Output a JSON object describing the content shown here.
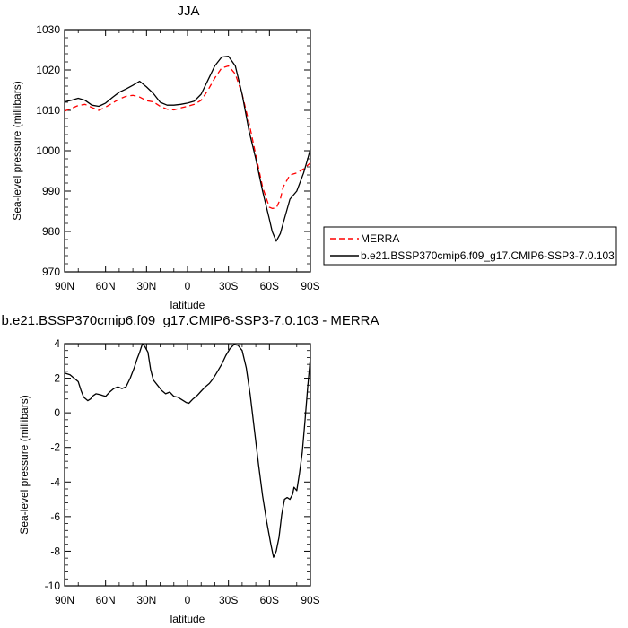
{
  "chart_data": [
    {
      "type": "line",
      "title": "JJA",
      "xlabel": "latitude",
      "ylabel": "Sea-level pressure (millibars)",
      "ylim": [
        970,
        1030
      ],
      "yticks": [
        970,
        980,
        990,
        1000,
        1010,
        1020,
        1030
      ],
      "xlim": [
        90,
        -90
      ],
      "xticks": [
        90,
        60,
        30,
        0,
        -30,
        -60,
        -90
      ],
      "xticklabels": [
        "90N",
        "60N",
        "30N",
        "0",
        "30S",
        "60S",
        "90S"
      ],
      "grid": false,
      "legend_position": "right",
      "series": [
        {
          "name": "MERRA",
          "color": "#ff0000",
          "dash": "dashed",
          "x": [
            90,
            85,
            80,
            75,
            70,
            65,
            60,
            55,
            50,
            45,
            40,
            35,
            30,
            25,
            20,
            15,
            10,
            5,
            0,
            -5,
            -10,
            -15,
            -20,
            -25,
            -30,
            -35,
            -40,
            -45,
            -50,
            -55,
            -60,
            -62,
            -65,
            -68,
            -70,
            -75,
            -80,
            -85,
            -90
          ],
          "y": [
            1009.8,
            1010.5,
            1011.2,
            1011.5,
            1010.7,
            1010,
            1010.8,
            1011.8,
            1012.8,
            1013.5,
            1013.7,
            1013.3,
            1012.4,
            1012.1,
            1011,
            1010.3,
            1010.1,
            1010.6,
            1011,
            1011.5,
            1012.5,
            1015,
            1018,
            1020.5,
            1021,
            1019,
            1014,
            1007,
            999,
            991,
            986,
            985.7,
            985.8,
            988,
            991,
            994,
            994.5,
            995.5,
            997
          ]
        },
        {
          "name": "b.e21.BSSP370cmip6.f09_g17.CMIP6-SSP3-7.0.103",
          "color": "#000000",
          "dash": "solid",
          "x": [
            90,
            85,
            80,
            75,
            70,
            65,
            60,
            55,
            50,
            45,
            40,
            35,
            30,
            25,
            20,
            15,
            10,
            5,
            0,
            -5,
            -10,
            -15,
            -20,
            -25,
            -30,
            -35,
            -40,
            -45,
            -50,
            -55,
            -60,
            -62,
            -65,
            -68,
            -70,
            -75,
            -80,
            -85,
            -88,
            -90
          ],
          "y": [
            1012.1,
            1012.5,
            1013,
            1012.5,
            1011.3,
            1011,
            1011.8,
            1013.2,
            1014.5,
            1015.3,
            1016.2,
            1017.2,
            1015.8,
            1014.2,
            1012,
            1011.3,
            1011.3,
            1011.5,
            1011.8,
            1012.3,
            1014,
            1017.5,
            1021,
            1023.2,
            1023.4,
            1021,
            1014,
            1005,
            998,
            990,
            983,
            980,
            977.6,
            979.5,
            982,
            988,
            990,
            994.5,
            998,
            1000.5
          ]
        }
      ]
    },
    {
      "type": "line",
      "title": "b.e21.BSSP370cmip6.f09_g17.CMIP6-SSP3-7.0.103 - MERRA",
      "xlabel": "latitude",
      "ylabel": "Sea-level pressure (millibars)",
      "ylim": [
        -10,
        4
      ],
      "yticks": [
        -10,
        -8,
        -6,
        -4,
        -2,
        0,
        2,
        4
      ],
      "xlim": [
        90,
        -90
      ],
      "xticks": [
        90,
        60,
        30,
        0,
        -30,
        -60,
        -90
      ],
      "xticklabels": [
        "90N",
        "60N",
        "30N",
        "0",
        "30S",
        "60S",
        "90S"
      ],
      "grid": false,
      "series": [
        {
          "color": "#000000",
          "dash": "solid",
          "x": [
            90,
            86,
            83,
            80,
            78,
            76,
            73,
            71,
            69,
            67,
            64,
            62,
            60,
            57,
            54,
            51,
            48,
            45,
            42,
            39,
            37,
            35,
            33,
            31,
            29,
            27,
            25,
            22,
            19,
            16,
            13,
            10,
            7,
            4,
            1,
            -1,
            -4,
            -7,
            -10,
            -13,
            -16,
            -19,
            -22,
            -25,
            -28,
            -31,
            -34,
            -37,
            -40,
            -43,
            -46,
            -49,
            -52,
            -55,
            -58,
            -61,
            -63,
            -65,
            -67,
            -69,
            -71,
            -73,
            -75,
            -77,
            -78,
            -80,
            -82,
            -84,
            -86,
            -88,
            -90
          ],
          "y": [
            2.3,
            2.2,
            2,
            1.8,
            1.3,
            0.9,
            0.7,
            0.8,
            1,
            1.1,
            1.05,
            1.0,
            0.95,
            1.2,
            1.4,
            1.5,
            1.4,
            1.5,
            2,
            2.6,
            3.1,
            3.5,
            4,
            3.8,
            3.5,
            2.5,
            1.9,
            1.6,
            1.3,
            1.1,
            1.2,
            0.95,
            0.9,
            0.75,
            0.6,
            0.55,
            0.8,
            1,
            1.25,
            1.5,
            1.7,
            2,
            2.4,
            2.8,
            3.3,
            3.7,
            3.95,
            3.9,
            3.6,
            2.6,
            1,
            -1,
            -3,
            -4.8,
            -6.3,
            -7.6,
            -8.35,
            -8,
            -7.2,
            -5.9,
            -5,
            -4.9,
            -5,
            -4.7,
            -4.3,
            -4.5,
            -3.5,
            -2.3,
            -0.5,
            1.5,
            3.2
          ]
        }
      ]
    }
  ]
}
